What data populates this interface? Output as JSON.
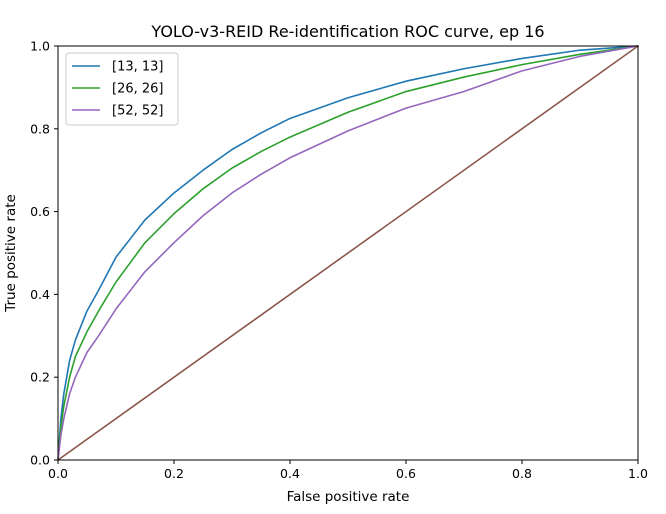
{
  "chart_data": {
    "type": "line",
    "title": "YOLO-v3-REID Re-identification ROC curve, ep 16",
    "xlabel": "False positive rate",
    "ylabel": "True positive rate",
    "xlim": [
      0,
      1
    ],
    "ylim": [
      0,
      1
    ],
    "xticks": [
      "0.0",
      "0.2",
      "0.4",
      "0.6",
      "0.8",
      "1.0"
    ],
    "yticks": [
      "0.0",
      "0.2",
      "0.4",
      "0.6",
      "0.8",
      "1.0"
    ],
    "grid": false,
    "legend_position": "upper-left",
    "series": [
      {
        "name": "[13, 13]",
        "color": "#1f77b4",
        "x": [
          0,
          0.005,
          0.01,
          0.02,
          0.03,
          0.05,
          0.07,
          0.1,
          0.15,
          0.2,
          0.25,
          0.3,
          0.35,
          0.4,
          0.5,
          0.6,
          0.7,
          0.8,
          0.9,
          1.0
        ],
        "y": [
          0,
          0.1,
          0.16,
          0.24,
          0.29,
          0.36,
          0.41,
          0.49,
          0.58,
          0.645,
          0.7,
          0.75,
          0.79,
          0.825,
          0.875,
          0.915,
          0.945,
          0.97,
          0.99,
          1.0
        ]
      },
      {
        "name": "[26, 26]",
        "color": "#2ca02c",
        "x": [
          0,
          0.005,
          0.01,
          0.02,
          0.03,
          0.05,
          0.07,
          0.1,
          0.15,
          0.2,
          0.25,
          0.3,
          0.35,
          0.4,
          0.5,
          0.6,
          0.7,
          0.8,
          0.9,
          1.0
        ],
        "y": [
          0,
          0.08,
          0.13,
          0.2,
          0.25,
          0.31,
          0.36,
          0.43,
          0.525,
          0.595,
          0.655,
          0.705,
          0.745,
          0.78,
          0.84,
          0.89,
          0.925,
          0.955,
          0.98,
          1.0
        ]
      },
      {
        "name": "[52, 52]",
        "color": "#9467bd",
        "x": [
          0,
          0.005,
          0.01,
          0.02,
          0.03,
          0.05,
          0.07,
          0.1,
          0.15,
          0.2,
          0.25,
          0.3,
          0.35,
          0.4,
          0.5,
          0.6,
          0.7,
          0.8,
          0.9,
          1.0
        ],
        "y": [
          0,
          0.06,
          0.1,
          0.16,
          0.2,
          0.26,
          0.3,
          0.365,
          0.455,
          0.525,
          0.59,
          0.645,
          0.69,
          0.73,
          0.795,
          0.85,
          0.89,
          0.94,
          0.975,
          1.0
        ]
      },
      {
        "color": "#8c564b",
        "x": [
          0,
          1
        ],
        "y": [
          0,
          1
        ]
      }
    ]
  }
}
